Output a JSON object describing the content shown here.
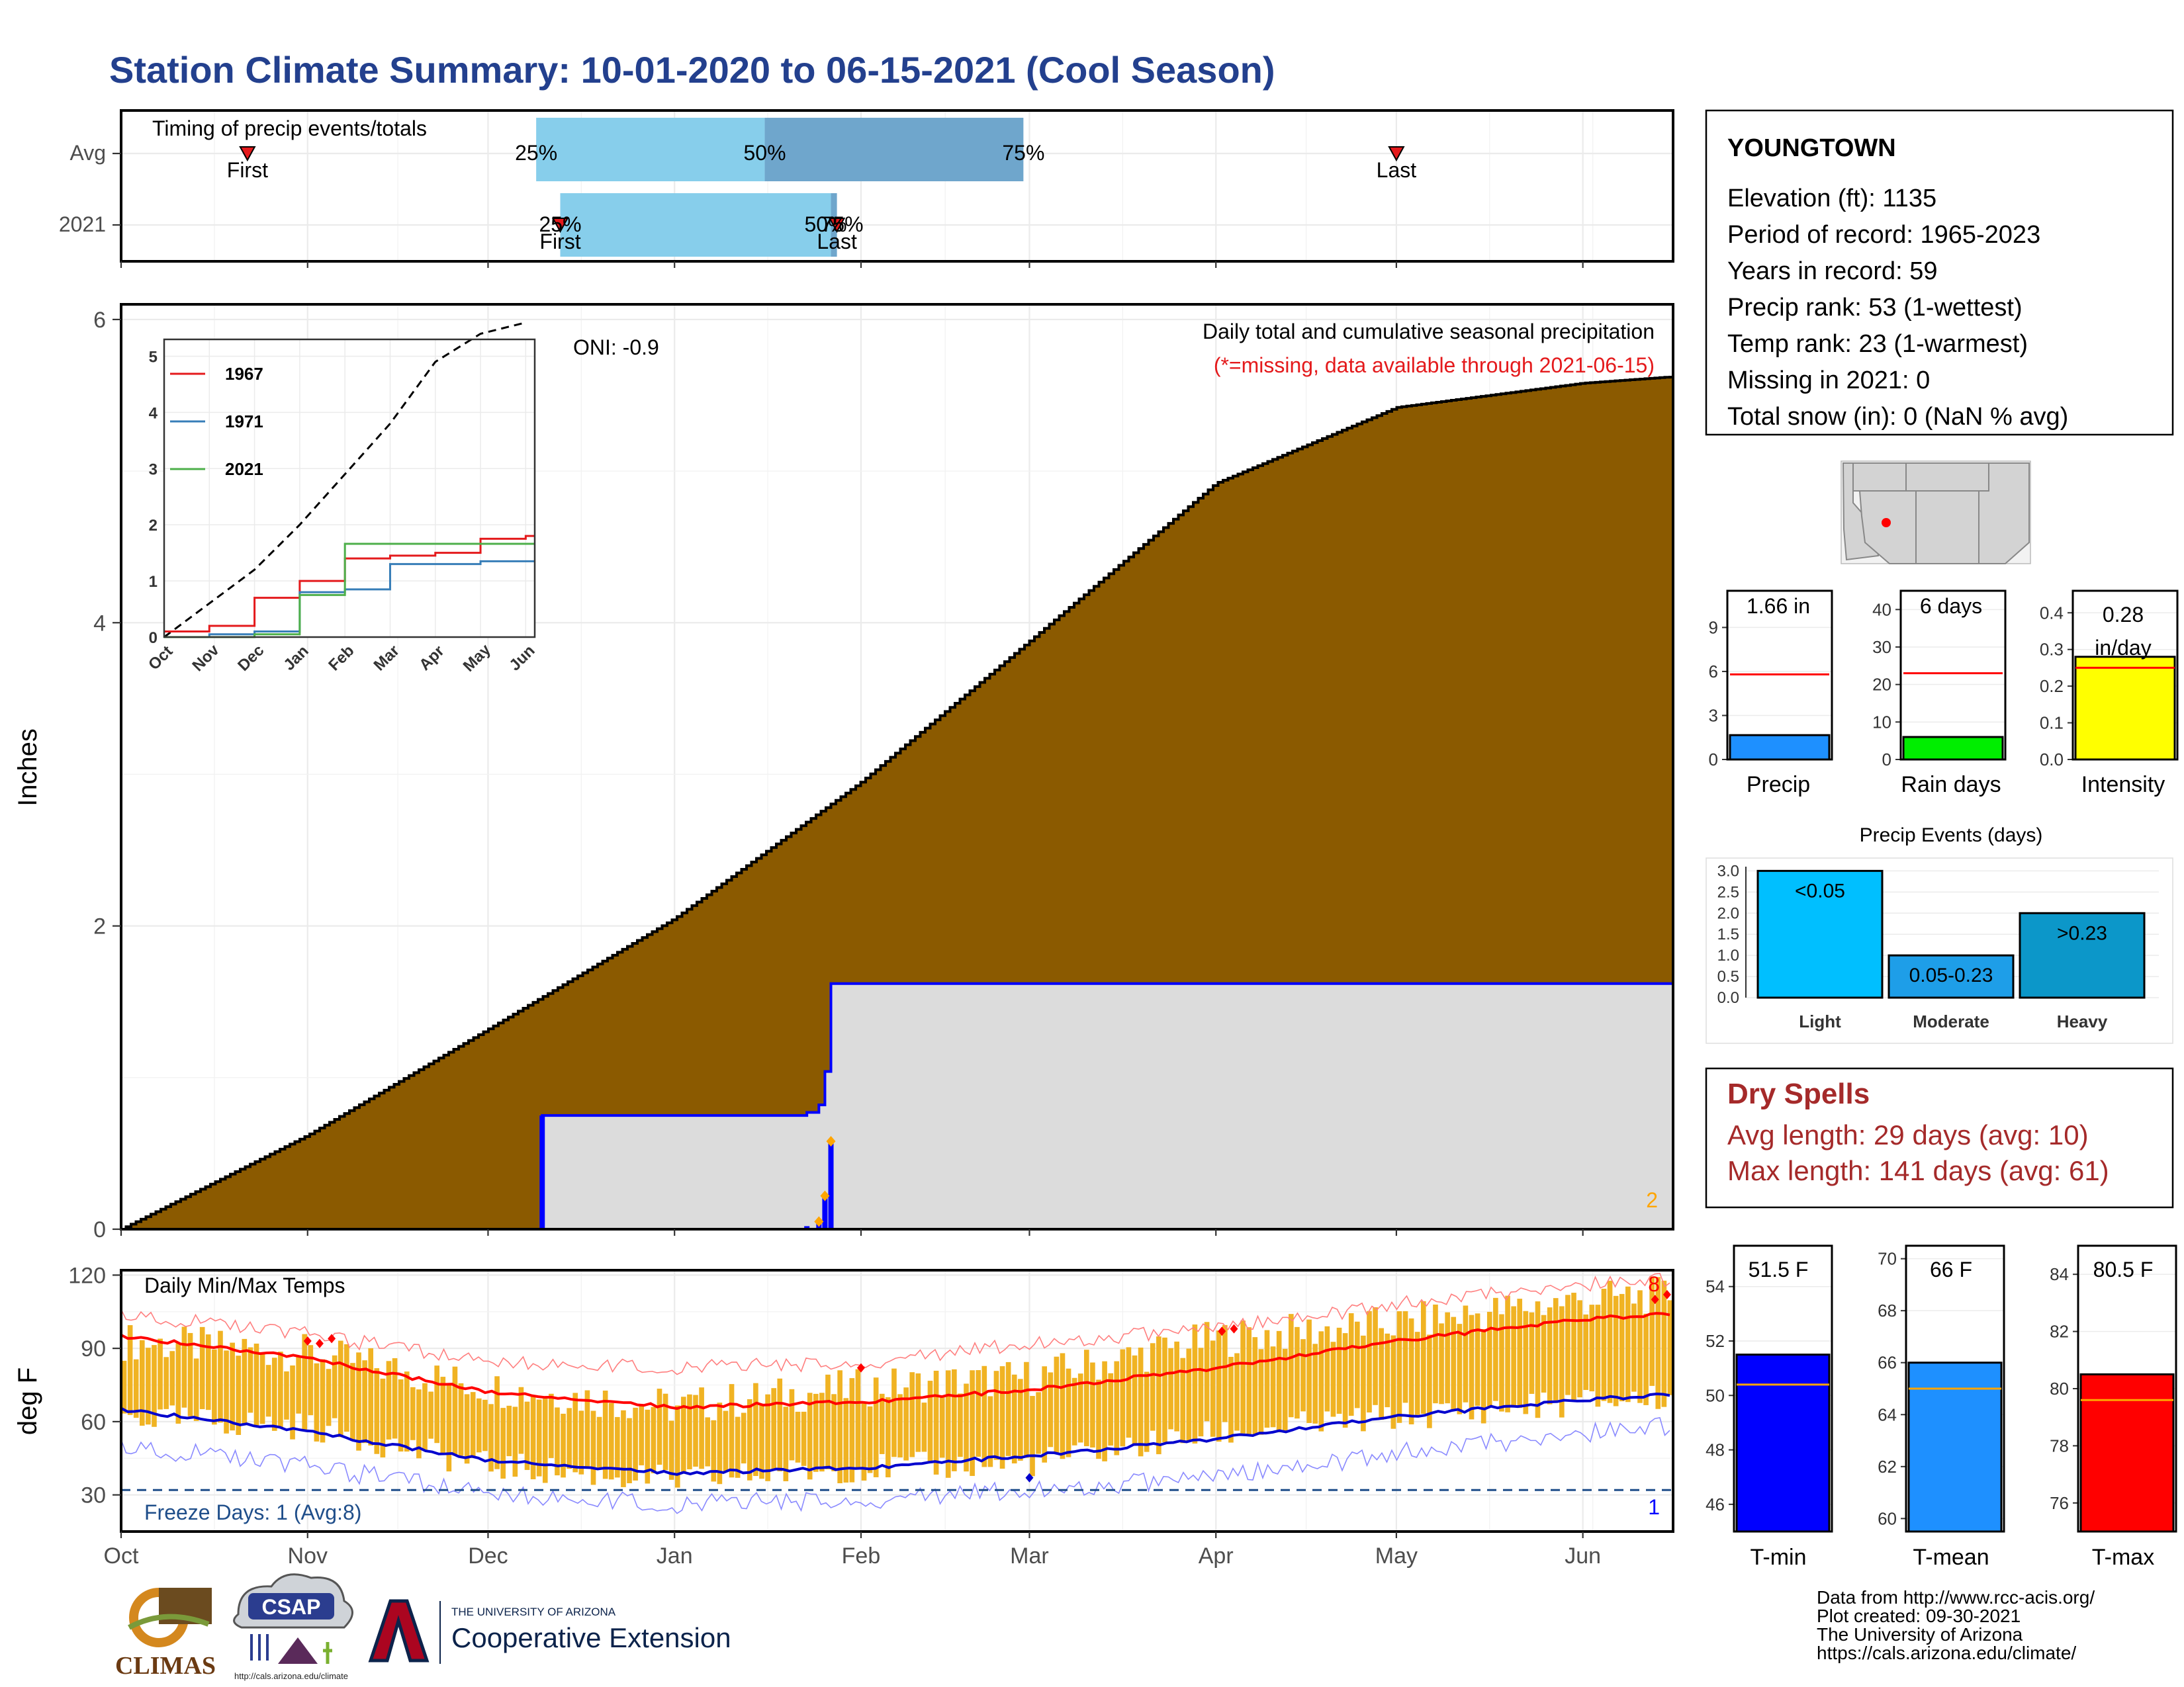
{
  "title": "Station Climate Summary: 10-01-2020 to 06-15-2021 (Cool Season)",
  "months": [
    "Oct",
    "Nov",
    "Dec",
    "Jan",
    "Feb",
    "Mar",
    "Apr",
    "May",
    "Jun"
  ],
  "timing": {
    "title": "Timing of precip events/totals",
    "rows": [
      "Avg",
      "2021"
    ],
    "avg": {
      "q25": "25%",
      "q50": "50%",
      "q75": "75%",
      "first": "First",
      "last": "Last",
      "q25_date": "2020-12-09",
      "q50_date": "2021-01-16",
      "q75_date": "2021-02-28",
      "first_date": "2020-10-22",
      "last_date": "2021-05-01"
    },
    "y2021": {
      "q25": "25%",
      "q50": "50%",
      "q75": "75%",
      "first": "First",
      "last": "Last",
      "q25_date": "2020-12-13",
      "q50_date": "2021-01-27",
      "q75_date": "2021-01-28",
      "first_date": "2020-12-13",
      "last_date": "2021-01-28"
    }
  },
  "station": {
    "name": "YOUNGTOWN",
    "lines": [
      "Elevation (ft): 1135",
      "Period of record: 1965-2023",
      "Years in record: 59",
      "Precip rank: 53 (1-wettest)",
      "Temp rank: 23 (1-warmest)",
      "Missing in 2021: 0",
      "Total snow (in): 0 (NaN % avg)"
    ]
  },
  "main_panel": {
    "ylabel": "Inches",
    "label1": "Daily total and cumulative seasonal precipitation",
    "label2": "(*=missing, data available through 2021-06-15)",
    "oni": "ONI: -0.9",
    "corner_count": "2",
    "y_ticks": [
      "0",
      "2",
      "4",
      "6"
    ]
  },
  "inset": {
    "series": [
      {
        "name": "1967",
        "color": "#e41a1c"
      },
      {
        "name": "1971",
        "color": "#377eb8"
      },
      {
        "name": "2021",
        "color": "#4daf4a"
      }
    ],
    "y_ticks": [
      "0",
      "1",
      "2",
      "3",
      "4",
      "5"
    ]
  },
  "temp_panel": {
    "ylabel": "deg F",
    "title": "Daily Min/Max Temps",
    "freeze": "Freeze Days: 1 (Avg:8)",
    "corner_max": "8",
    "corner_min": "1",
    "y_ticks": [
      "30",
      "60",
      "90",
      "120"
    ]
  },
  "small_bars": {
    "precip": {
      "label": "Precip",
      "value_text": "1.66 in",
      "y_ticks": [
        "0",
        "3",
        "6",
        "9"
      ]
    },
    "raindays": {
      "label": "Rain days",
      "value_text": "6 days",
      "y_ticks": [
        "0",
        "10",
        "20",
        "30",
        "40"
      ]
    },
    "intensity": {
      "label": "Intensity",
      "value_text_1": "0.28",
      "value_text_2": "in/day",
      "y_ticks": [
        "0.0",
        "0.1",
        "0.2",
        "0.3",
        "0.4"
      ]
    }
  },
  "events": {
    "title": "Precip Events (days)",
    "y_ticks": [
      "0.0",
      "0.5",
      "1.0",
      "1.5",
      "2.0",
      "2.5",
      "3.0"
    ],
    "bars": [
      {
        "name": "Light",
        "label": "<0.05",
        "color": "#00bfff"
      },
      {
        "name": "Moderate",
        "label": "0.05-0.23",
        "color": "#1e9ee8"
      },
      {
        "name": "Heavy",
        "label": ">0.23",
        "color": "#0c97c9"
      }
    ]
  },
  "dry_spells": {
    "title": "Dry Spells",
    "avg": "Avg length: 29 days (avg: 10)",
    "max": "Max length: 141 days (avg: 61)"
  },
  "temp_bars": {
    "tmin": {
      "label": "T-min",
      "value_text": "51.5 F",
      "y_ticks": [
        "46",
        "48",
        "50",
        "52",
        "54"
      ],
      "color": "#0000ff"
    },
    "tmean": {
      "label": "T-mean",
      "value_text": "66 F",
      "y_ticks": [
        "60",
        "62",
        "64",
        "66",
        "68",
        "70"
      ],
      "color": "#1e90ff"
    },
    "tmax": {
      "label": "T-max",
      "value_text": "80.5 F",
      "y_ticks": [
        "76",
        "78",
        "80",
        "82",
        "84"
      ],
      "color": "#ff0000"
    }
  },
  "credits": [
    "Data from http://www.rcc-acis.org/",
    "Plot created: 09-30-2021",
    "The University of Arizona",
    "https://cals.arizona.edu/climate/"
  ],
  "logos": {
    "climas": "CLIMAS",
    "csap": "CSAP",
    "csap_url": "http://cals.arizona.edu/climate",
    "ua_small": "THE UNIVERSITY OF ARIZONA",
    "ua_big": "Cooperative Extension"
  },
  "chart_data": [
    {
      "type": "area",
      "title": "Daily total and cumulative seasonal precipitation",
      "ylabel": "Inches",
      "ylim": [
        0,
        6.1
      ],
      "x": [
        "2020-10-01",
        "2020-11-01",
        "2020-12-01",
        "2021-01-01",
        "2021-02-01",
        "2021-03-01",
        "2021-04-01",
        "2021-05-01",
        "2021-06-01",
        "2021-06-15"
      ],
      "series": [
        {
          "name": "avg cumulative (brown)",
          "values": [
            0.0,
            0.62,
            1.32,
            2.05,
            2.95,
            3.88,
            4.92,
            5.42,
            5.58,
            5.62
          ]
        },
        {
          "name": "2021 cumulative (gray)",
          "values": [
            0,
            0,
            0,
            0.75,
            1.66,
            1.66,
            1.66,
            1.66,
            1.66,
            1.66
          ]
        }
      ],
      "daily_2021": [
        {
          "date": "2020-12-10",
          "value": 0.75
        },
        {
          "date": "2021-01-23",
          "value": 0.02
        },
        {
          "date": "2021-01-25",
          "value": 0.05
        },
        {
          "date": "2021-01-26",
          "value": 0.22
        },
        {
          "date": "2021-01-27",
          "value": 0.58
        }
      ]
    },
    {
      "type": "line",
      "title": "",
      "ylim": [
        0,
        5.3
      ],
      "x": [
        "Oct",
        "Nov",
        "Dec",
        "Jan",
        "Feb",
        "Mar",
        "Apr",
        "May",
        "Jun"
      ],
      "series": [
        {
          "name": "avg cumulative",
          "values": [
            0,
            0.6,
            1.2,
            2.0,
            2.9,
            3.8,
            4.9,
            5.4,
            5.6
          ]
        },
        {
          "name": "1967",
          "values": [
            0.1,
            0.2,
            0.7,
            1.0,
            1.4,
            1.45,
            1.5,
            1.75,
            1.8
          ]
        },
        {
          "name": "1971",
          "values": [
            0,
            0.05,
            0.1,
            0.8,
            0.85,
            1.3,
            1.3,
            1.35,
            1.35
          ]
        },
        {
          "name": "2021",
          "values": [
            0,
            0,
            0.05,
            0.75,
            1.66,
            1.66,
            1.66,
            1.66,
            1.66
          ]
        }
      ]
    },
    {
      "type": "bar",
      "title": "Daily Min/Max Temps",
      "ylabel": "deg F",
      "ylim": [
        15,
        120
      ],
      "x": [
        "2020-10-01",
        "2020-11-01",
        "2020-12-01",
        "2021-01-01",
        "2021-02-01",
        "2021-03-01",
        "2021-04-01",
        "2021-05-01",
        "2021-06-01",
        "2021-06-15"
      ],
      "series": [
        {
          "name": "avg max",
          "values": [
            95,
            86,
            72,
            66,
            68,
            73,
            82,
            93,
            102,
            104
          ]
        },
        {
          "name": "avg min",
          "values": [
            65,
            56,
            44,
            39,
            41,
            46,
            53,
            62,
            69,
            71
          ]
        },
        {
          "name": "record max",
          "values": [
            104,
            96,
            84,
            82,
            84,
            92,
            98,
            108,
            116,
            118
          ]
        },
        {
          "name": "record min",
          "values": [
            50,
            42,
            30,
            26,
            28,
            32,
            37,
            47,
            55,
            58
          ]
        },
        {
          "name": "daily max 2021",
          "values": [
            93,
            88,
            74,
            66,
            74,
            78,
            94,
            100,
            110,
            112
          ]
        },
        {
          "name": "daily min 2021",
          "values": [
            62,
            58,
            42,
            36,
            41,
            43,
            55,
            62,
            68,
            70
          ]
        }
      ]
    },
    {
      "type": "bar",
      "categories": [
        "Precip"
      ],
      "values": [
        1.66
      ],
      "avg": 5.8,
      "ylim": [
        0,
        11.5
      ]
    },
    {
      "type": "bar",
      "categories": [
        "Rain days"
      ],
      "values": [
        6
      ],
      "avg": 23,
      "ylim": [
        0,
        45
      ]
    },
    {
      "type": "bar",
      "categories": [
        "Intensity"
      ],
      "values": [
        0.28
      ],
      "avg": 0.25,
      "ylim": [
        0,
        0.46
      ]
    },
    {
      "type": "bar",
      "title": "Precip Events (days)",
      "categories": [
        "Light",
        "Moderate",
        "Heavy"
      ],
      "values": [
        3,
        1,
        2
      ],
      "ylim": [
        0,
        3.1
      ]
    },
    {
      "type": "bar",
      "categories": [
        "T-min"
      ],
      "values": [
        51.5
      ],
      "avg": 50.4,
      "ylim": [
        45,
        55.5
      ]
    },
    {
      "type": "bar",
      "categories": [
        "T-mean"
      ],
      "values": [
        66
      ],
      "avg": 65,
      "ylim": [
        59.5,
        70.5
      ]
    },
    {
      "type": "bar",
      "categories": [
        "T-max"
      ],
      "values": [
        80.5
      ],
      "avg": 79.6,
      "ylim": [
        75,
        85
      ]
    }
  ]
}
